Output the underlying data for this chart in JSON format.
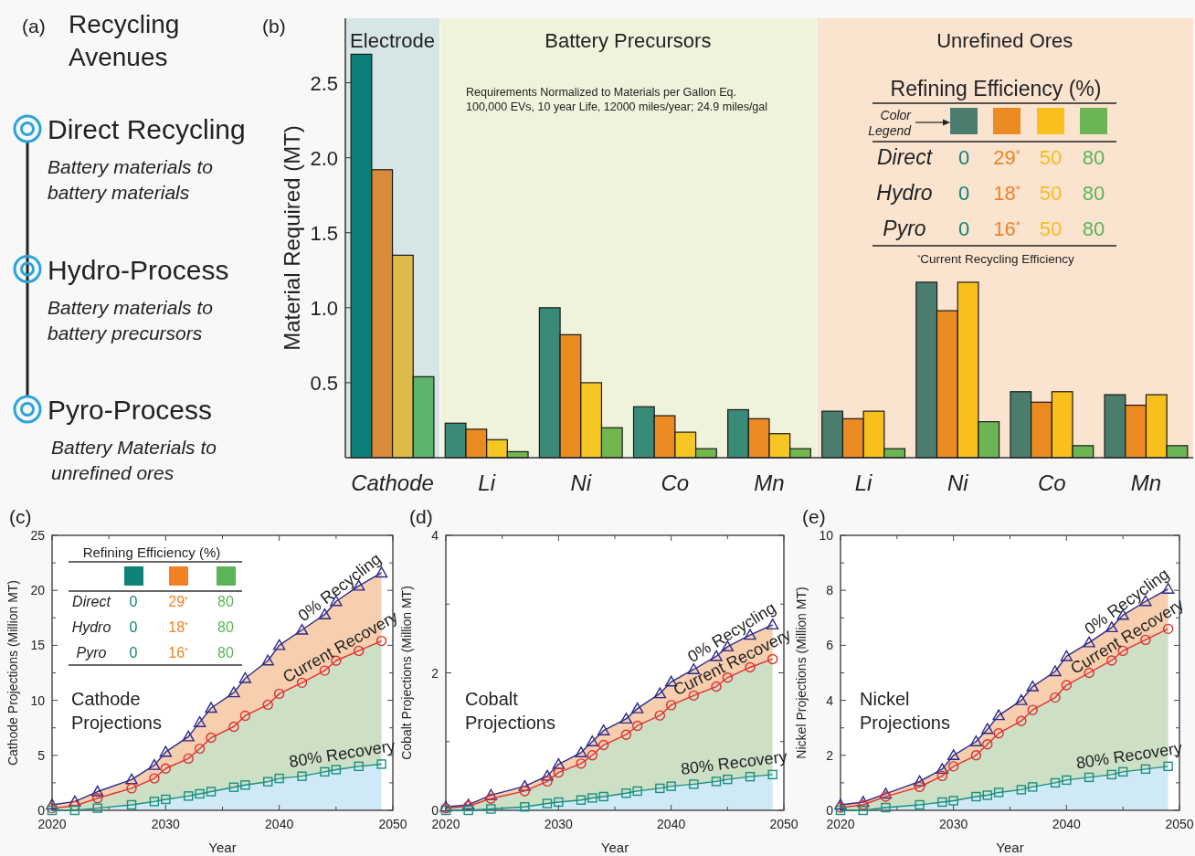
{
  "chart_data": [
    {
      "type": "other",
      "title": "Recycling Avenues",
      "annotations": [
        "(a)",
        "Direct Recycling",
        "Battery materials to battery materials",
        "Hydro-Process",
        "Battery materials to battery precursors",
        "Pyro-Process",
        "Battery Materials to unrefined ores"
      ]
    },
    {
      "type": "bar",
      "ylabel": "Material Required (MT)",
      "categories": [
        "Cathode",
        "Li",
        "Ni",
        "Co",
        "Mn",
        "Li",
        "Ni",
        "Co",
        "Mn"
      ],
      "ylim": [
        0,
        2.93
      ],
      "yticks": [
        0.5,
        {
          "value": 1,
          "label": "1.0"
        },
        1.5,
        {
          "value": 2,
          "label": "2.0"
        },
        2.5
      ],
      "series": [
        {
          "colors": [
            "#0b8078",
            "#3a8a78",
            "#3a8a78",
            "#3a8a78",
            "#3a8a78",
            "#4a7d6e",
            "#4a7d6e",
            "#4a7d6e",
            "#4a7d6e"
          ],
          "values": [
            2.69,
            0.23,
            1.0,
            0.34,
            0.32,
            0.31,
            1.17,
            0.44,
            0.42
          ]
        },
        {
          "colors": [
            "#d98a3a",
            "#ec8a22",
            "#ec8a22",
            "#ec8a22",
            "#ec8a22",
            "#ec8a22",
            "#ec8a22",
            "#ec8a22",
            "#ec8a22"
          ],
          "values": [
            1.92,
            0.19,
            0.82,
            0.28,
            0.26,
            0.26,
            0.98,
            0.37,
            0.35
          ]
        },
        {
          "colors": [
            "#ddbb48",
            "#f6c623",
            "#f6c623",
            "#f6c623",
            "#f6c623",
            "#f9bf1c",
            "#f9bf1c",
            "#f9bf1c",
            "#f9bf1c"
          ],
          "values": [
            1.35,
            0.12,
            0.5,
            0.17,
            0.16,
            0.31,
            1.17,
            0.44,
            0.42
          ]
        },
        {
          "colors": [
            "#5cb36a",
            "#70b84e",
            "#70b84e",
            "#70b84e",
            "#70b84e",
            "#6bb555",
            "#6bb555",
            "#6bb555",
            "#6bb555"
          ],
          "values": [
            0.54,
            0.04,
            0.2,
            0.06,
            0.06,
            0.06,
            0.24,
            0.08,
            0.08
          ]
        }
      ],
      "annotations": [
        "(b)",
        "Requirements Normalized to Materials per Gallon Eq.",
        "100,000 EVs, 10 year Life, 12000 miles/year; 24.9 miles/gal",
        "Refining Efficiency (%)",
        "Color",
        "Legend",
        "Direct",
        "0",
        "29$^{*}$",
        "50",
        "80",
        "Hydro",
        "0",
        "18$^{*}$",
        "50",
        "80",
        "Pyro",
        "0",
        "16$^{*}$",
        "50",
        "80",
        "$^{*}$Current Recycling Efficiency",
        "Battery Precursors",
        "Unrefined Ores"
      ],
      "bands": [
        {
          "axis": "x",
          "from": "Cathode",
          "to": "Cathode",
          "label": "Electrode",
          "color": "#d6e6e6"
        }
      ]
    },
    {
      "type": "line",
      "xlabel": "Year",
      "ylabel": "Cathode Projections (Million MT)",
      "x": [
        2020,
        2022,
        2024,
        2027,
        2029,
        2030,
        2032,
        2033,
        2034,
        2036,
        2037,
        2039,
        2040,
        2042,
        2044,
        2045,
        2047,
        2049
      ],
      "xlim": [
        2020,
        2050
      ],
      "xticks": [
        2020,
        {
          "value": 2025,
          "label": null
        },
        2030,
        {
          "value": 2035,
          "label": null
        },
        2040,
        {
          "value": 2045,
          "label": null
        },
        2050
      ],
      "ylim": [
        0,
        25
      ],
      "yticks": [
        0,
        {
          "value": 2.5,
          "label": null
        },
        5,
        {
          "value": 7.5,
          "label": null
        },
        10,
        {
          "value": 12.5,
          "label": null
        },
        15,
        {
          "value": 17.5,
          "label": null
        },
        20,
        {
          "value": 22.5,
          "label": null
        },
        25
      ],
      "annotations": [
        "(c)",
        "Cathode Projections",
        "Refining Efficiency (%)",
        "Direct",
        "0",
        "29$^{*}$",
        "80",
        "Hydro",
        "0",
        "18$^{*}$",
        "80",
        "Pyro",
        "0",
        "16$^{*}$",
        "80"
      ],
      "series": [
        {
          "name": "0% Recycling",
          "color": "#2b2b8c",
          "marker": "triangle",
          "values": [
            0.5,
            0.8,
            1.7,
            2.8,
            4.1,
            5.3,
            6.7,
            8.0,
            9.3,
            10.7,
            12.0,
            13.6,
            15.0,
            16.4,
            17.8,
            19.0,
            20.4,
            21.6
          ],
          "lower": [
            0.2,
            0.4,
            1.1,
            2.0,
            2.9,
            3.8,
            4.7,
            5.6,
            6.6,
            7.6,
            8.6,
            9.6,
            10.6,
            11.6,
            12.7,
            13.6,
            14.5,
            15.4
          ],
          "upper": [
            0.5,
            0.8,
            1.7,
            2.8,
            4.1,
            5.3,
            6.7,
            8.0,
            9.3,
            10.7,
            12.0,
            13.6,
            15.0,
            16.4,
            17.8,
            19.0,
            20.4,
            21.6
          ]
        },
        {
          "name": "Current Recovery",
          "color": "#e03030",
          "marker": "circle",
          "values": [
            0.2,
            0.4,
            1.1,
            2.0,
            2.9,
            3.8,
            4.7,
            5.6,
            6.6,
            7.6,
            8.6,
            9.6,
            10.6,
            11.6,
            12.7,
            13.6,
            14.5,
            15.4
          ],
          "lower": [
            0.0,
            0.0,
            0.2,
            0.5,
            0.8,
            1.0,
            1.3,
            1.5,
            1.7,
            2.1,
            2.3,
            2.6,
            2.9,
            3.1,
            3.5,
            3.7,
            4.0,
            4.2
          ],
          "upper": [
            0.2,
            0.4,
            1.1,
            2.0,
            2.9,
            3.8,
            4.7,
            5.6,
            6.6,
            7.6,
            8.6,
            9.6,
            10.6,
            11.6,
            12.7,
            13.6,
            14.5,
            15.4
          ]
        },
        {
          "name": "80% Recovery",
          "color": "#1a8f80",
          "marker": "square",
          "values": [
            0.0,
            0.0,
            0.2,
            0.5,
            0.8,
            1.0,
            1.3,
            1.5,
            1.7,
            2.1,
            2.3,
            2.6,
            2.9,
            3.1,
            3.5,
            3.7,
            4.0,
            4.2
          ],
          "lower": [
            0,
            0,
            0,
            0,
            0,
            0,
            0,
            0,
            0,
            0,
            0,
            0,
            0,
            0,
            0,
            0,
            0,
            0
          ],
          "upper": [
            0.0,
            0.0,
            0.2,
            0.5,
            0.8,
            1.0,
            1.3,
            1.5,
            1.7,
            2.1,
            2.3,
            2.6,
            2.9,
            3.1,
            3.5,
            3.7,
            4.0,
            4.2
          ]
        }
      ]
    },
    {
      "type": "line",
      "xlabel": "Year",
      "ylabel": "Cobalt Projections (Million MT)",
      "x": [
        2020,
        2022,
        2024,
        2027,
        2029,
        2030,
        2032,
        2033,
        2034,
        2036,
        2037,
        2039,
        2040,
        2042,
        2044,
        2045,
        2047,
        2049
      ],
      "xlim": [
        2020,
        2050
      ],
      "xticks": [
        2020,
        {
          "value": 2025,
          "label": null
        },
        2030,
        {
          "value": 2035,
          "label": null
        },
        2040,
        {
          "value": 2045,
          "label": null
        },
        2050
      ],
      "ylim": [
        0,
        4
      ],
      "yticks": [
        0,
        {
          "value": 1,
          "label": null
        },
        2,
        {
          "value": 3,
          "label": null
        },
        4
      ],
      "annotations": [
        "(d)",
        "Cobalt Projections"
      ],
      "series": [
        {
          "name": "0% Recycling",
          "color": "#2b2b8c",
          "marker": "triangle",
          "values": [
            0.05,
            0.08,
            0.22,
            0.35,
            0.5,
            0.67,
            0.84,
            1.0,
            1.16,
            1.33,
            1.48,
            1.7,
            1.87,
            2.05,
            2.24,
            2.38,
            2.55,
            2.7
          ],
          "lower": [
            0.03,
            0.06,
            0.17,
            0.28,
            0.42,
            0.55,
            0.68,
            0.8,
            0.95,
            1.1,
            1.23,
            1.38,
            1.53,
            1.67,
            1.8,
            1.93,
            2.08,
            2.2
          ],
          "upper": [
            0.05,
            0.08,
            0.22,
            0.35,
            0.5,
            0.67,
            0.84,
            1.0,
            1.16,
            1.33,
            1.48,
            1.7,
            1.87,
            2.05,
            2.24,
            2.38,
            2.55,
            2.7
          ]
        },
        {
          "name": "Current Recovery",
          "color": "#e03030",
          "marker": "circle",
          "values": [
            0.03,
            0.06,
            0.17,
            0.28,
            0.42,
            0.55,
            0.68,
            0.8,
            0.95,
            1.1,
            1.23,
            1.38,
            1.53,
            1.67,
            1.8,
            1.93,
            2.08,
            2.2
          ],
          "lower": [
            0.0,
            0.0,
            0.02,
            0.05,
            0.1,
            0.12,
            0.15,
            0.18,
            0.2,
            0.25,
            0.28,
            0.32,
            0.35,
            0.38,
            0.42,
            0.45,
            0.49,
            0.52
          ],
          "upper": [
            0.03,
            0.06,
            0.17,
            0.28,
            0.42,
            0.55,
            0.68,
            0.8,
            0.95,
            1.1,
            1.23,
            1.38,
            1.53,
            1.67,
            1.8,
            1.93,
            2.08,
            2.2
          ]
        },
        {
          "name": "80% Recovery",
          "color": "#1a8f80",
          "marker": "square",
          "values": [
            0.0,
            0.0,
            0.02,
            0.05,
            0.1,
            0.12,
            0.15,
            0.18,
            0.2,
            0.25,
            0.28,
            0.32,
            0.35,
            0.38,
            0.42,
            0.45,
            0.49,
            0.52
          ],
          "lower": [
            0,
            0,
            0,
            0,
            0,
            0,
            0,
            0,
            0,
            0,
            0,
            0,
            0,
            0,
            0,
            0,
            0,
            0
          ],
          "upper": [
            0.0,
            0.0,
            0.02,
            0.05,
            0.1,
            0.12,
            0.15,
            0.18,
            0.2,
            0.25,
            0.28,
            0.32,
            0.35,
            0.38,
            0.42,
            0.45,
            0.49,
            0.52
          ]
        }
      ]
    },
    {
      "type": "line",
      "xlabel": "Year",
      "ylabel": "Nickel Projections (Million MT)",
      "x": [
        2020,
        2022,
        2024,
        2027,
        2029,
        2030,
        2032,
        2033,
        2034,
        2036,
        2037,
        2039,
        2040,
        2042,
        2044,
        2045,
        2047,
        2049
      ],
      "xlim": [
        2020,
        2050
      ],
      "xticks": [
        2020,
        {
          "value": 2025,
          "label": null
        },
        2030,
        {
          "value": 2035,
          "label": null
        },
        2040,
        {
          "value": 2045,
          "label": null
        },
        2050
      ],
      "ylim": [
        0,
        10
      ],
      "yticks": [
        0,
        {
          "value": 1,
          "label": null
        },
        2,
        {
          "value": 3,
          "label": null
        },
        4,
        {
          "value": 5,
          "label": null
        },
        6,
        {
          "value": 7,
          "label": null
        },
        8,
        {
          "value": 9,
          "label": null
        },
        10
      ],
      "annotations": [
        "(e)",
        "Nickel Projections"
      ],
      "series": [
        {
          "name": "0% Recycling",
          "color": "#2b2b8c",
          "marker": "triangle",
          "values": [
            0.2,
            0.3,
            0.6,
            1.05,
            1.5,
            2.0,
            2.5,
            2.95,
            3.45,
            4.0,
            4.5,
            5.05,
            5.6,
            6.1,
            6.65,
            7.1,
            7.6,
            8.05
          ],
          "lower": [
            0.1,
            0.2,
            0.5,
            0.85,
            1.25,
            1.6,
            2.0,
            2.4,
            2.8,
            3.25,
            3.65,
            4.1,
            4.55,
            5.0,
            5.45,
            5.8,
            6.2,
            6.6
          ],
          "upper": [
            0.2,
            0.3,
            0.6,
            1.05,
            1.5,
            2.0,
            2.5,
            2.95,
            3.45,
            4.0,
            4.5,
            5.05,
            5.6,
            6.1,
            6.65,
            7.1,
            7.6,
            8.05
          ]
        },
        {
          "name": "Current Recovery",
          "color": "#e03030",
          "marker": "circle",
          "values": [
            0.1,
            0.2,
            0.5,
            0.85,
            1.25,
            1.6,
            2.0,
            2.4,
            2.8,
            3.25,
            3.65,
            4.1,
            4.55,
            5.0,
            5.45,
            5.8,
            6.2,
            6.6
          ],
          "lower": [
            0.0,
            0.0,
            0.1,
            0.2,
            0.3,
            0.35,
            0.5,
            0.55,
            0.65,
            0.75,
            0.85,
            1.0,
            1.1,
            1.2,
            1.3,
            1.4,
            1.5,
            1.6
          ],
          "upper": [
            0.1,
            0.2,
            0.5,
            0.85,
            1.25,
            1.6,
            2.0,
            2.4,
            2.8,
            3.25,
            3.65,
            4.1,
            4.55,
            5.0,
            5.45,
            5.8,
            6.2,
            6.6
          ]
        },
        {
          "name": "80% Recovery",
          "color": "#1a8f80",
          "marker": "square",
          "values": [
            0.0,
            0.0,
            0.1,
            0.2,
            0.3,
            0.35,
            0.5,
            0.55,
            0.65,
            0.75,
            0.85,
            1.0,
            1.1,
            1.2,
            1.3,
            1.4,
            1.5,
            1.6
          ],
          "lower": [
            0,
            0,
            0,
            0,
            0,
            0,
            0,
            0,
            0,
            0,
            0,
            0,
            0,
            0,
            0,
            0,
            0,
            0
          ],
          "upper": [
            0.0,
            0.0,
            0.1,
            0.2,
            0.3,
            0.35,
            0.5,
            0.55,
            0.65,
            0.75,
            0.85,
            1.0,
            1.1,
            1.2,
            1.3,
            1.4,
            1.5,
            1.6
          ]
        }
      ]
    }
  ]
}
